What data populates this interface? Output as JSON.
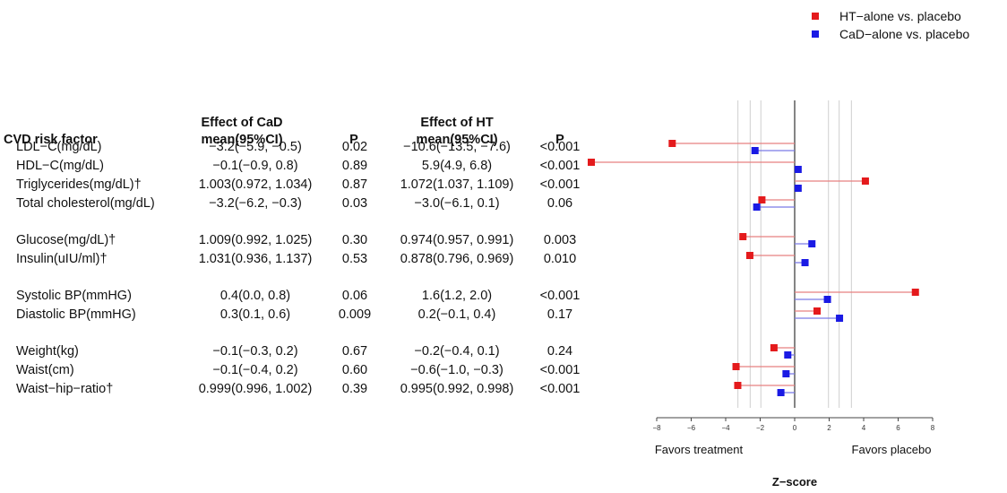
{
  "table": {
    "header": {
      "risk_factor": "CVD risk factor",
      "cad_effect_line1": "Effect of CaD",
      "cad_effect_line2": "mean(95%CI)",
      "cad_p": "P",
      "ht_effect_line1": "Effect of HT",
      "ht_effect_line2": "mean(95%CI)",
      "ht_p": "P"
    },
    "rows": [
      {
        "factor": "LDL−C(mg/dL)",
        "cad": "−3.2(−5.9, −0.5)",
        "cad_p": "0.02",
        "ht": "−10.6(−13.5, −7.6)",
        "ht_p": "<0.001"
      },
      {
        "factor": "HDL−C(mg/dL)",
        "cad": "−0.1(−0.9, 0.8)",
        "cad_p": "0.89",
        "ht": "5.9(4.9, 6.8)",
        "ht_p": "<0.001"
      },
      {
        "factor": "Triglycerides(mg/dL)†",
        "cad": "1.003(0.972, 1.034)",
        "cad_p": "0.87",
        "ht": "1.072(1.037, 1.109)",
        "ht_p": "<0.001"
      },
      {
        "factor": "Total cholesterol(mg/dL)",
        "cad": "−3.2(−6.2, −0.3)",
        "cad_p": "0.03",
        "ht": "−3.0(−6.1, 0.1)",
        "ht_p": "0.06"
      },
      {
        "factor": "Glucose(mg/dL)†",
        "cad": "1.009(0.992, 1.025)",
        "cad_p": "0.30",
        "ht": "0.974(0.957, 0.991)",
        "ht_p": "0.003"
      },
      {
        "factor": "Insulin(uIU/ml)†",
        "cad": "1.031(0.936, 1.137)",
        "cad_p": "0.53",
        "ht": "0.878(0.796, 0.969)",
        "ht_p": "0.010"
      },
      {
        "factor": "Systolic BP(mmHG)",
        "cad": "0.4(0.0, 0.8)",
        "cad_p": "0.06",
        "ht": "1.6(1.2, 2.0)",
        "ht_p": "<0.001"
      },
      {
        "factor": "Diastolic BP(mmHG)",
        "cad": "0.3(0.1, 0.6)",
        "cad_p": "0.009",
        "ht": "0.2(−0.1, 0.4)",
        "ht_p": "0.17"
      },
      {
        "factor": "Weight(kg)",
        "cad": "−0.1(−0.3, 0.2)",
        "cad_p": "0.67",
        "ht": "−0.2(−0.4, 0.1)",
        "ht_p": "0.24"
      },
      {
        "factor": "Waist(cm)",
        "cad": "−0.1(−0.4, 0.2)",
        "cad_p": "0.60",
        "ht": "−0.6(−1.0, −0.3)",
        "ht_p": "<0.001"
      },
      {
        "factor": "Waist−hip−ratio†",
        "cad": "0.999(0.996, 1.002)",
        "cad_p": "0.39",
        "ht": "0.995(0.992, 0.998)",
        "ht_p": "<0.001"
      }
    ]
  },
  "chart_data": {
    "type": "scatter",
    "xlabel": "Z−score",
    "xlim": [
      -8,
      8
    ],
    "xticks": [
      -8,
      -6,
      -4,
      -2,
      0,
      2,
      4,
      6,
      8
    ],
    "reference_lines": [
      -3.29,
      -2.58,
      -1.96,
      1.96,
      2.58,
      3.29
    ],
    "annotation_left": "Favors treatment",
    "annotation_right": "Favors placebo",
    "legend_position": "top-right",
    "categories": [
      "LDL−C(mg/dL)",
      "HDL−C(mg/dL)",
      "Triglycerides(mg/dL)†",
      "Total cholesterol(mg/dL)",
      "Glucose(mg/dL)†",
      "Insulin(uIU/ml)†",
      "Systolic BP(mmHG)",
      "Diastolic BP(mmHG)",
      "Weight(kg)",
      "Waist(cm)",
      "Waist−hip−ratio†"
    ],
    "series": [
      {
        "name": "HT−alone vs. placebo",
        "color": "#e41a1c",
        "line_color": "#e88080",
        "values": [
          -7.1,
          -11.8,
          4.1,
          -1.9,
          -3.0,
          -2.6,
          7.0,
          1.3,
          -1.2,
          -3.4,
          -3.3
        ]
      },
      {
        "name": "CaD−alone vs. placebo",
        "color": "#1a1ae4",
        "line_color": "#7b7be8",
        "values": [
          -2.3,
          0.2,
          0.2,
          -2.2,
          1.0,
          0.6,
          1.9,
          2.6,
          -0.4,
          -0.5,
          -0.8
        ]
      }
    ]
  }
}
